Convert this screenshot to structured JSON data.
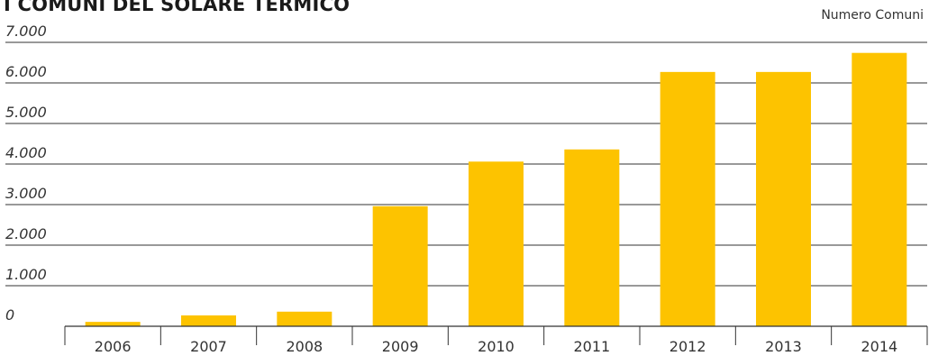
{
  "chart_data": {
    "type": "bar",
    "title": "I COMUNI DEL SOLARE TERMICO",
    "unit_label": "Numero Comuni",
    "categories": [
      "2006",
      "2007",
      "2008",
      "2009",
      "2010",
      "2011",
      "2012",
      "2013",
      "2014"
    ],
    "values": [
      108,
      268,
      360,
      2960,
      4060,
      4360,
      6270,
      6270,
      6740
    ],
    "ylim": [
      0,
      7000
    ],
    "yticks": [
      0,
      1000,
      2000,
      3000,
      4000,
      5000,
      6000,
      7000
    ],
    "ytick_labels": [
      "0",
      "1.000",
      "2.000",
      "3.000",
      "4.000",
      "5.000",
      "6.000",
      "7.000"
    ],
    "grid": true,
    "colors": {
      "bar": "#FDC300",
      "grid": "#333333",
      "text": "#333333"
    }
  }
}
